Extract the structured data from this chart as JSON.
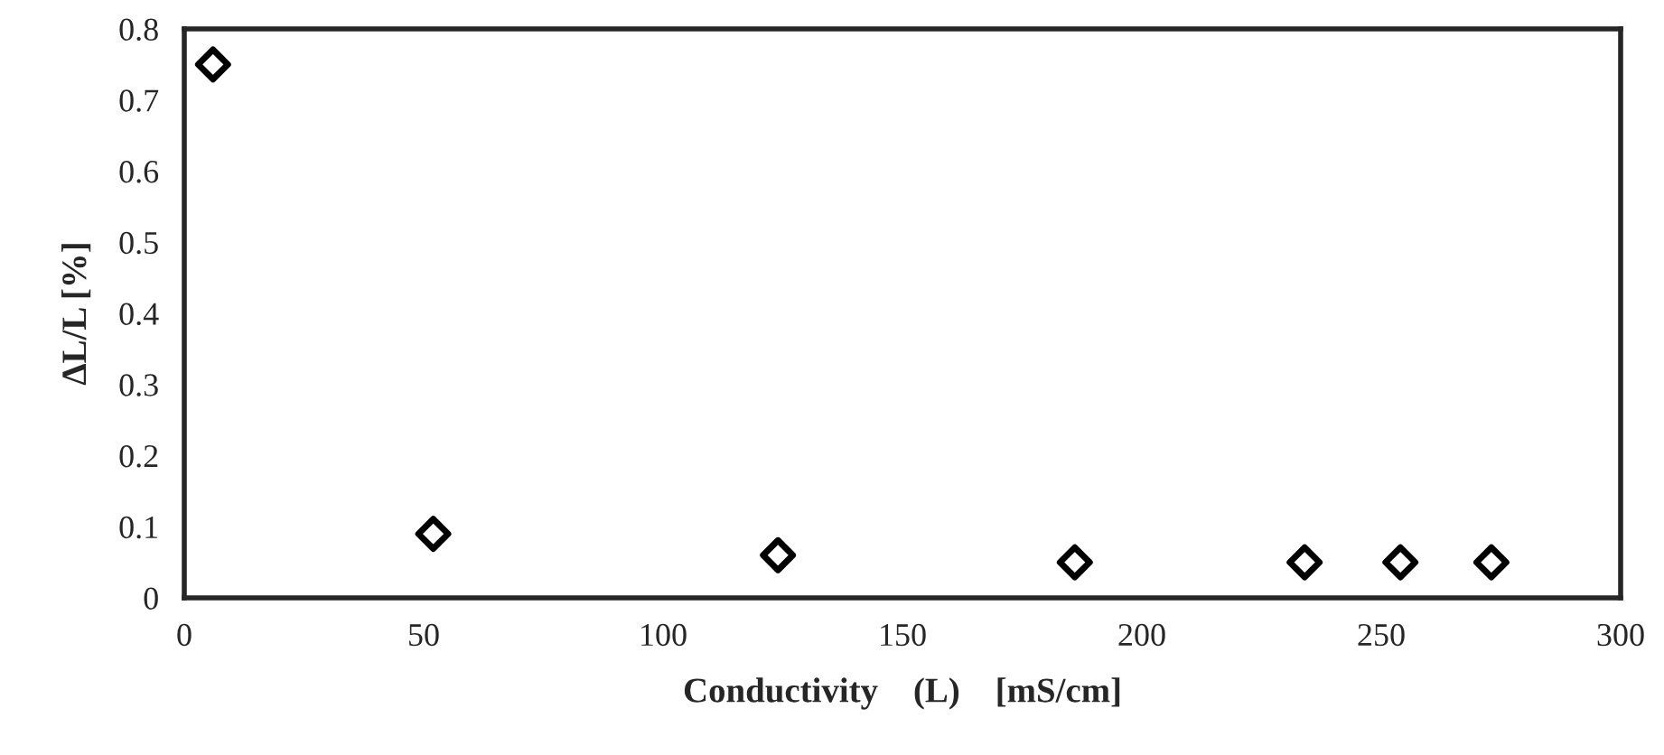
{
  "chart_data": {
    "type": "scatter",
    "xlabel": "Conductivity    (L)    [mS/cm]",
    "ylabel": "ΔL/L [%]",
    "x": [
      6,
      52,
      124,
      186,
      234,
      254,
      273
    ],
    "values": [
      0.75,
      0.09,
      0.06,
      0.05,
      0.05,
      0.05,
      0.05
    ],
    "color": "#000000",
    "marker": "diamond",
    "xlim": [
      0,
      300
    ],
    "xticks": [
      0,
      50,
      100,
      150,
      200,
      250,
      300
    ],
    "ylim": [
      0,
      0.8
    ],
    "yticks": [
      0,
      0.1,
      0.2,
      0.3,
      0.4,
      0.5,
      0.6,
      0.7,
      0.8
    ],
    "grid": false,
    "legend": false
  }
}
